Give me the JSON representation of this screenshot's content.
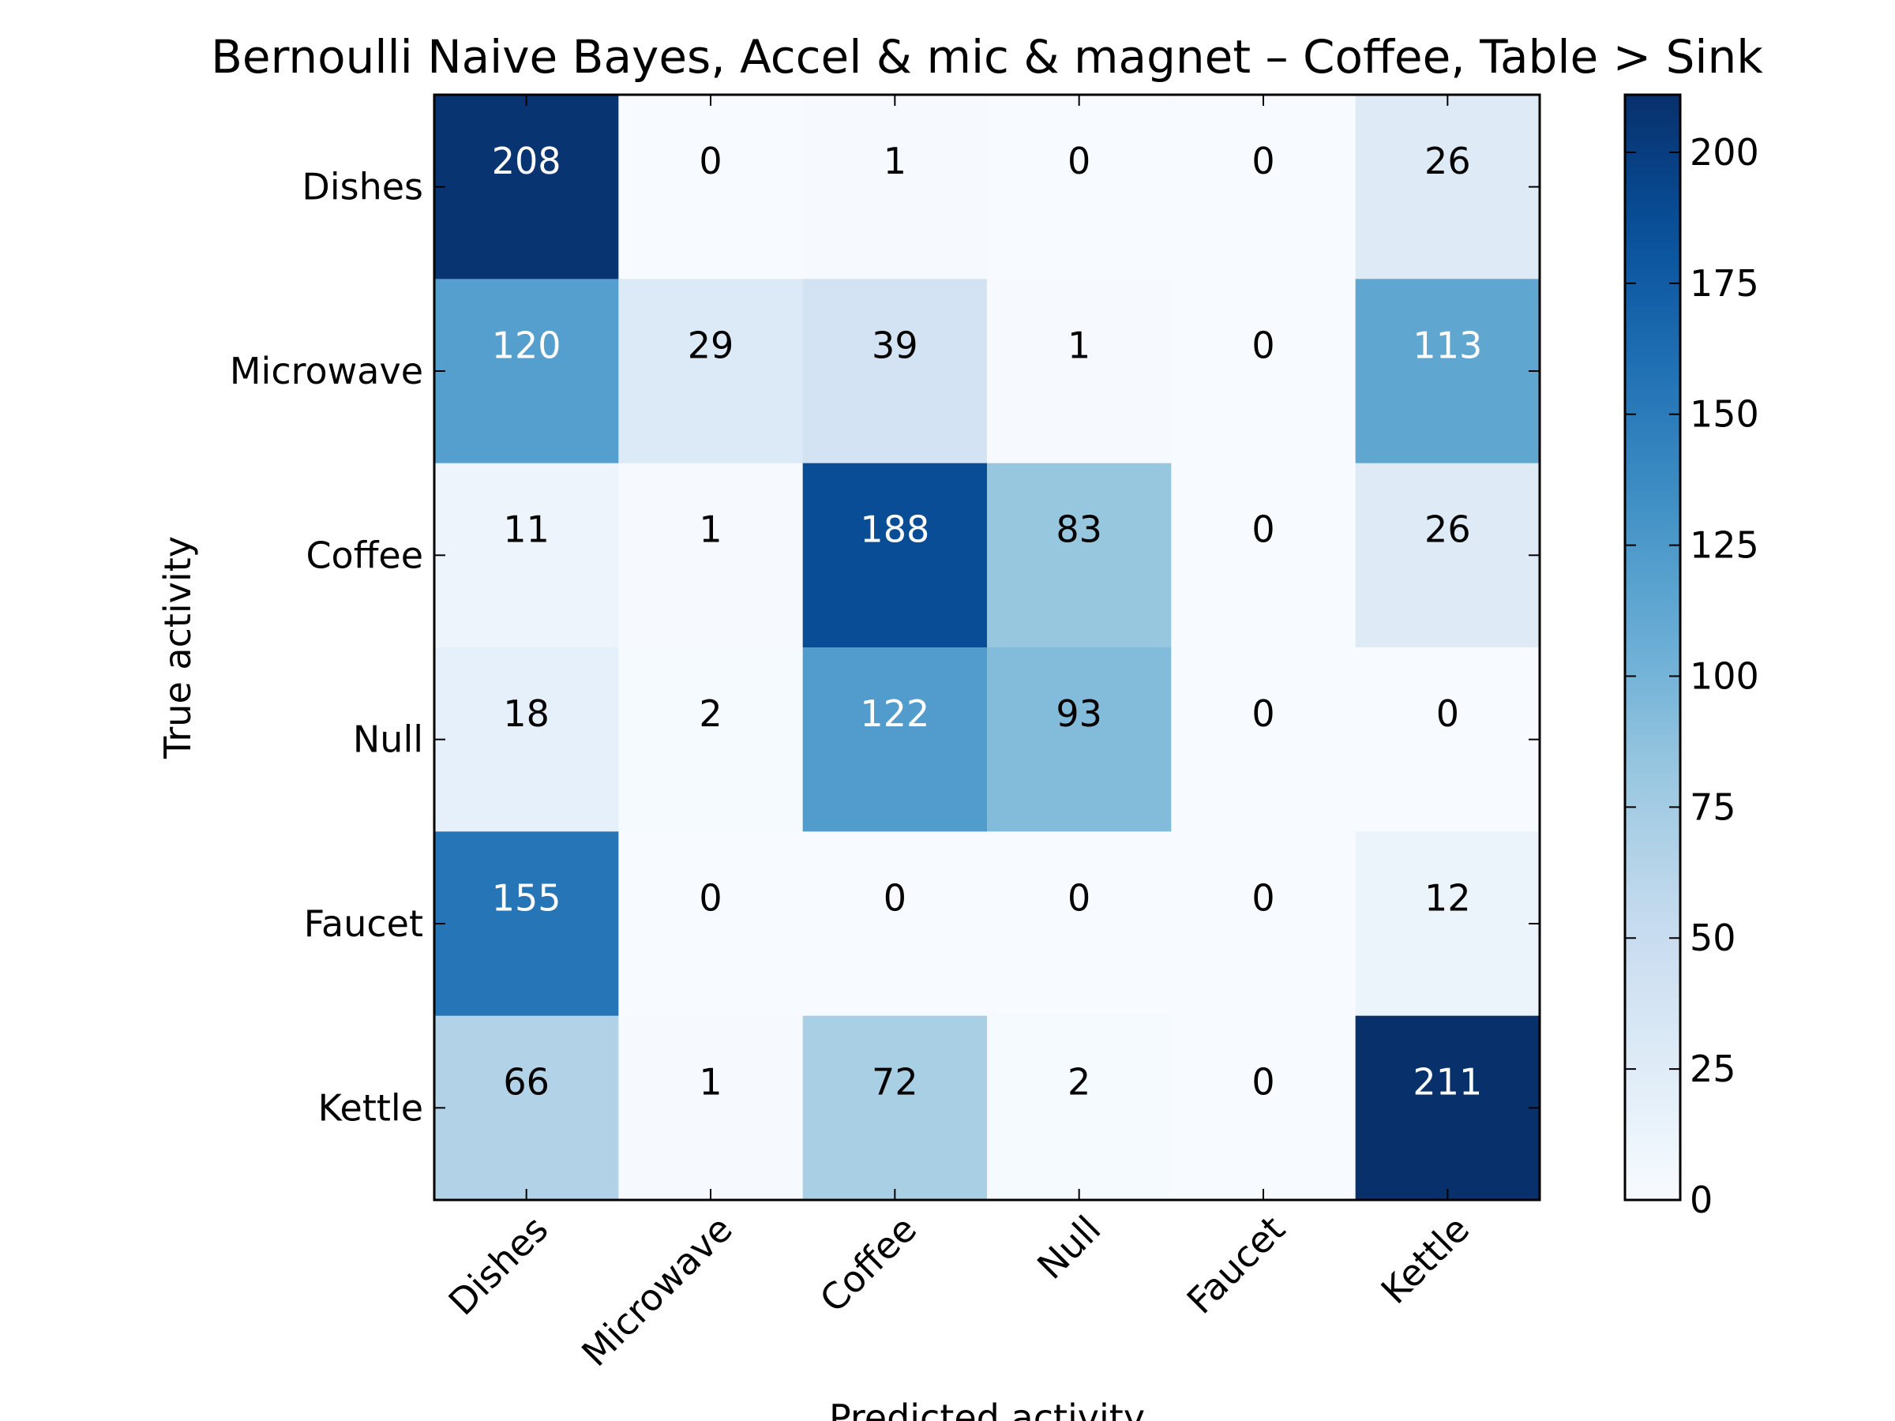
{
  "chart_data": {
    "type": "heatmap",
    "title": "Bernoulli Naive Bayes, Accel & mic & magnet – Coffee, Table > Sink",
    "xlabel": "Predicted activity",
    "ylabel": "True activity",
    "x_categories": [
      "Dishes",
      "Microwave",
      "Coffee",
      "Null",
      "Faucet",
      "Kettle"
    ],
    "y_categories": [
      "Dishes",
      "Microwave",
      "Coffee",
      "Null",
      "Faucet",
      "Kettle"
    ],
    "values": [
      [
        208,
        0,
        1,
        0,
        0,
        26
      ],
      [
        120,
        29,
        39,
        1,
        0,
        113
      ],
      [
        11,
        1,
        188,
        83,
        0,
        26
      ],
      [
        18,
        2,
        122,
        93,
        0,
        0
      ],
      [
        155,
        0,
        0,
        0,
        0,
        12
      ],
      [
        66,
        1,
        72,
        2,
        0,
        211
      ]
    ],
    "colormap": "Blues",
    "colorbar": {
      "range": [
        0,
        211
      ],
      "ticks": [
        0,
        25,
        50,
        75,
        100,
        125,
        150,
        175,
        200
      ]
    },
    "text_colors": {
      "light": "#ffffff",
      "dark": "#000000"
    },
    "text_threshold": 105.5
  }
}
